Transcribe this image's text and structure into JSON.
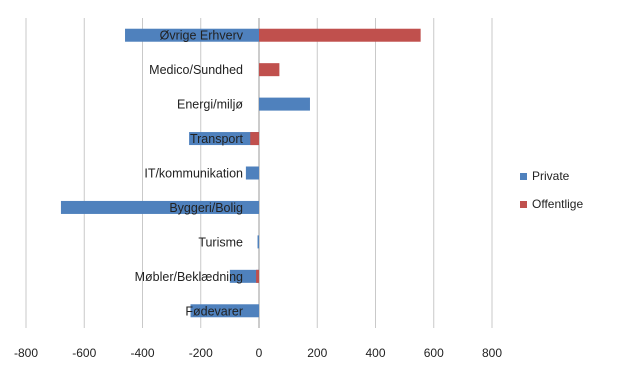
{
  "chart_data": {
    "type": "bar",
    "orientation": "horizontal",
    "categories": [
      "Øvrige Erhverv",
      "Medico/Sundhed",
      "Energi/miljø",
      "Transport",
      "IT/kommunikation",
      "Byggeri/Bolig",
      "Turisme",
      "Møbler/Beklædning",
      "Fødevarer"
    ],
    "series": [
      {
        "name": "Private",
        "color": "#4f81bd",
        "values": [
          -460,
          0,
          175,
          -240,
          -45,
          -680,
          -5,
          -100,
          -235
        ]
      },
      {
        "name": "Offentlige",
        "color": "#c0504d",
        "values": [
          555,
          70,
          0,
          -30,
          0,
          0,
          0,
          -10,
          0
        ]
      }
    ],
    "title": "",
    "xlabel": "",
    "ylabel": "",
    "xlim": [
      -800,
      800
    ],
    "xticks": [
      "-800",
      "-600",
      "-400",
      "-200",
      "0",
      "200",
      "400",
      "600",
      "800"
    ],
    "grid": "vertical",
    "legend_position": "right"
  }
}
